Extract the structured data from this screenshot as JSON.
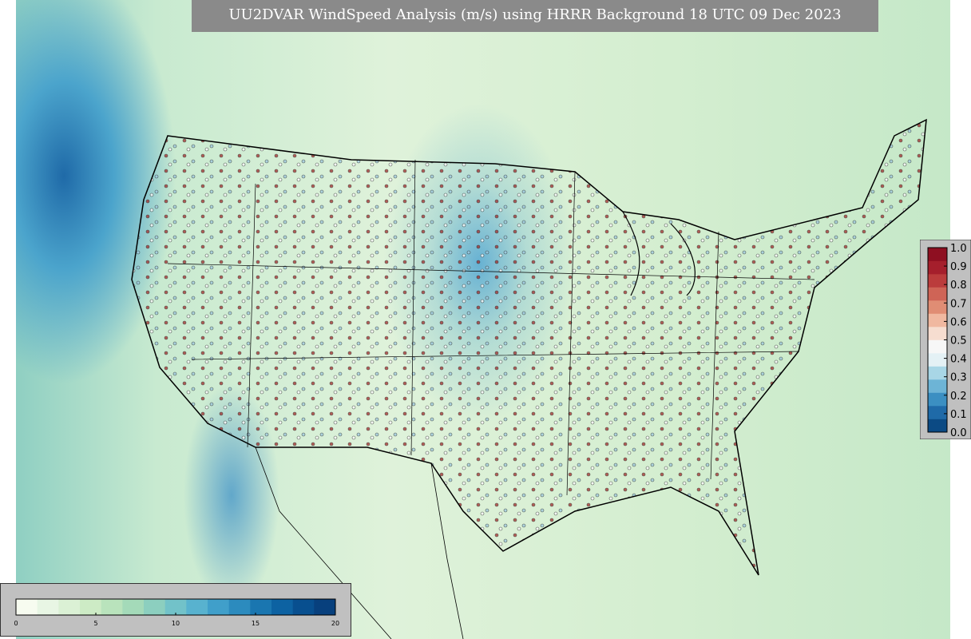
{
  "title": "UU2DVAR WindSpeed Analysis (m/s) using HRRR Background 18 UTC 09 Dec 2023",
  "colorbars": [
    {
      "orientation": "vertical",
      "lim": [
        0,
        1
      ],
      "ticks": [
        {
          "value": 1,
          "label": "1.0"
        },
        0.9,
        0.8,
        0.7,
        0.6,
        0.5,
        0.4,
        0.3,
        0.2,
        0.1,
        {
          "value": 0,
          "label": "0.0"
        }
      ],
      "colors": [
        "#0b4a84",
        "#1f6aa8",
        "#3b8fc2",
        "#6db4d6",
        "#a8d6e6",
        "#e4f1f5",
        "#f7f7f7",
        "#f6ddd0",
        "#f0b8a0",
        "#e08d74",
        "#cf6456",
        "#bb3c3c",
        "#a51f2c",
        "#8e0f21"
      ]
    },
    {
      "orientation": "horizontal",
      "lim": [
        0,
        20
      ],
      "ticks": [
        0,
        5,
        10,
        15,
        20
      ],
      "colors": [
        "#f7fcf0",
        "#e8f6e4",
        "#dbf1d5",
        "#cdebc5",
        "#b9e3bc",
        "#a4dab9",
        "#8ccfbf",
        "#72c2c9",
        "#58b2cf",
        "#409fca",
        "#2c8bbe",
        "#1a76b0",
        "#0d62a2",
        "#084f8f",
        "#08407d"
      ]
    }
  ]
}
